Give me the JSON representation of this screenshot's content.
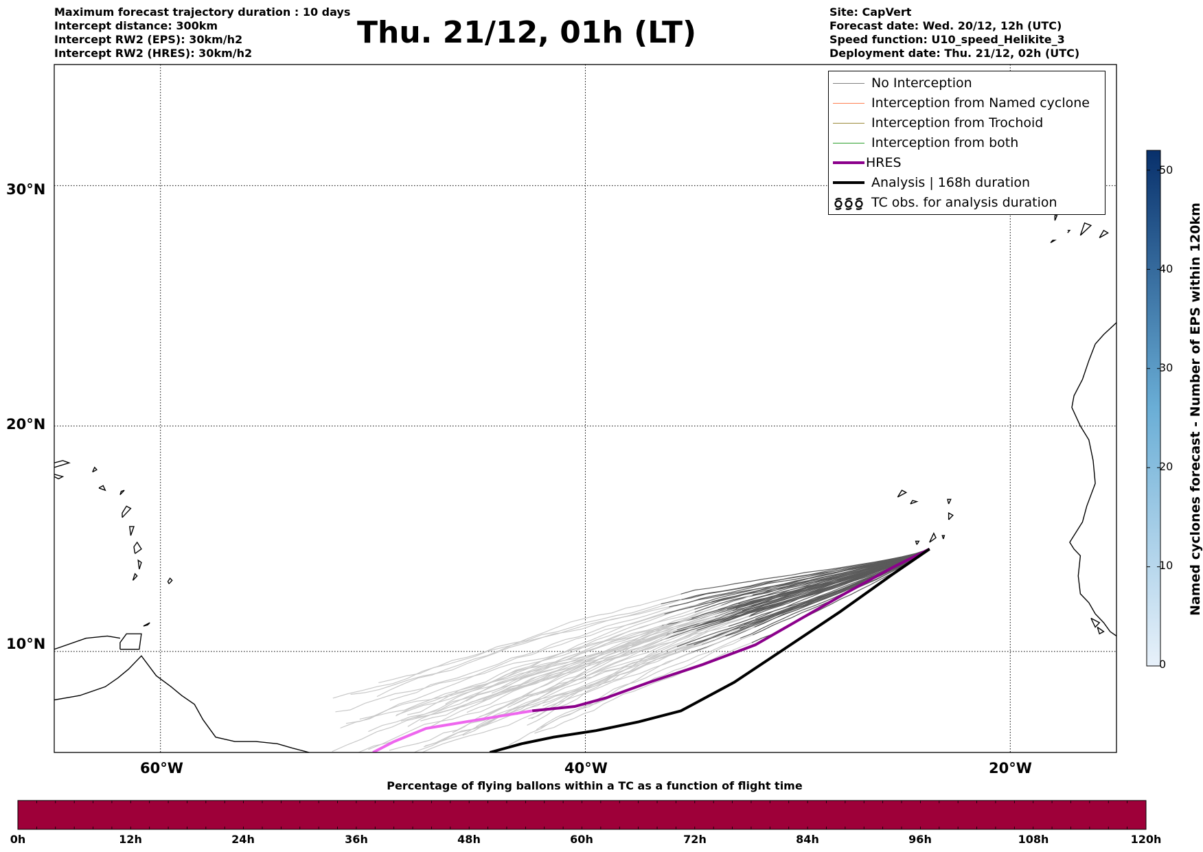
{
  "header_left": [
    "Maximum forecast trajectory duration : 10 days",
    "Intercept distance: 300km",
    "Intercept RW2 (EPS):  30km/h2",
    "Intercept RW2 (HRES): 30km/h2"
  ],
  "header_right": [
    "Site: CapVert",
    "Forecast date: Wed. 20/12, 12h (UTC)",
    "Speed function: U10_speed_Helikite_3",
    "Deployment date: Thu. 21/12, 02h (UTC)"
  ],
  "title": "Thu. 21/12, 01h (LT)",
  "map": {
    "lat_range": [
      5.4,
      34.7
    ],
    "lon_range": [
      -65,
      -15
    ],
    "lat_labels": [
      {
        "value": 30,
        "text": "30°N"
      },
      {
        "value": 20,
        "text": "20°N"
      },
      {
        "value": 10,
        "text": "10°N"
      }
    ],
    "lon_labels": [
      {
        "value": -60,
        "text": "60°W"
      },
      {
        "value": -40,
        "text": "40°W"
      },
      {
        "value": -20,
        "text": "20°W"
      }
    ],
    "colors": {
      "coast": "#000000",
      "grid": "#000000",
      "eps_late": "#c8c8c8",
      "eps_early": "#5a5a5a",
      "hres_early": "#8b008b",
      "hres_late": "#ee66ee",
      "analysis": "#000000"
    }
  },
  "legend": [
    {
      "label": "No Interception",
      "color": "#808080",
      "style": "line-thin"
    },
    {
      "label": "Interception from Named cyclone",
      "color": "#ff7f50",
      "style": "line-thin"
    },
    {
      "label": "Interception from Trochoid",
      "color": "#9b8b3b",
      "style": "line-thin"
    },
    {
      "label": "Interception from both",
      "color": "#2ca02c",
      "style": "line-thin"
    },
    {
      "label": "HRES",
      "color": "#8b008b",
      "style": "line-thick"
    },
    {
      "label": "Analysis | 168h duration",
      "color": "#000000",
      "style": "line-thick"
    },
    {
      "label": "TC obs. for analysis duration",
      "color": "#000000",
      "style": "tc-symbol"
    }
  ],
  "colorbar_right": {
    "label": "Named cyclones forecast - Number of EPS within 120km",
    "min": 0,
    "max": 52,
    "ticks": [
      "0",
      "10",
      "20",
      "30",
      "40",
      "50"
    ],
    "color_low": "#e8f1fa",
    "color_high": "#08306b"
  },
  "colorbar_bottom": {
    "title": "Percentage of flying ballons within a TC as a function of flight time",
    "ticks": [
      "0h",
      "12h",
      "24h",
      "36h",
      "48h",
      "60h",
      "72h",
      "84h",
      "96h",
      "108h",
      "120h"
    ],
    "fill_color": "#9e0039"
  }
}
